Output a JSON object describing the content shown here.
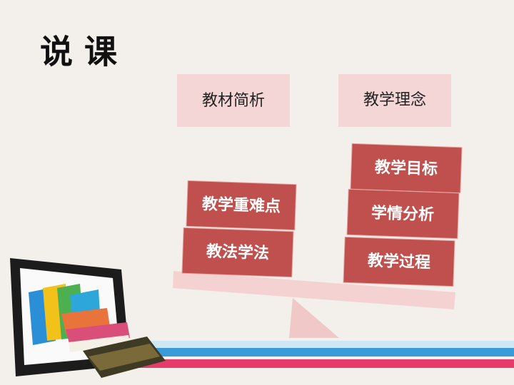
{
  "title": "说 课",
  "top_boxes": [
    "教材简析",
    "教学理念"
  ],
  "left_stack": [
    "教学重难点",
    "教法学法"
  ],
  "right_stack": [
    "教学目标",
    "学情分析",
    "教学过程"
  ]
}
